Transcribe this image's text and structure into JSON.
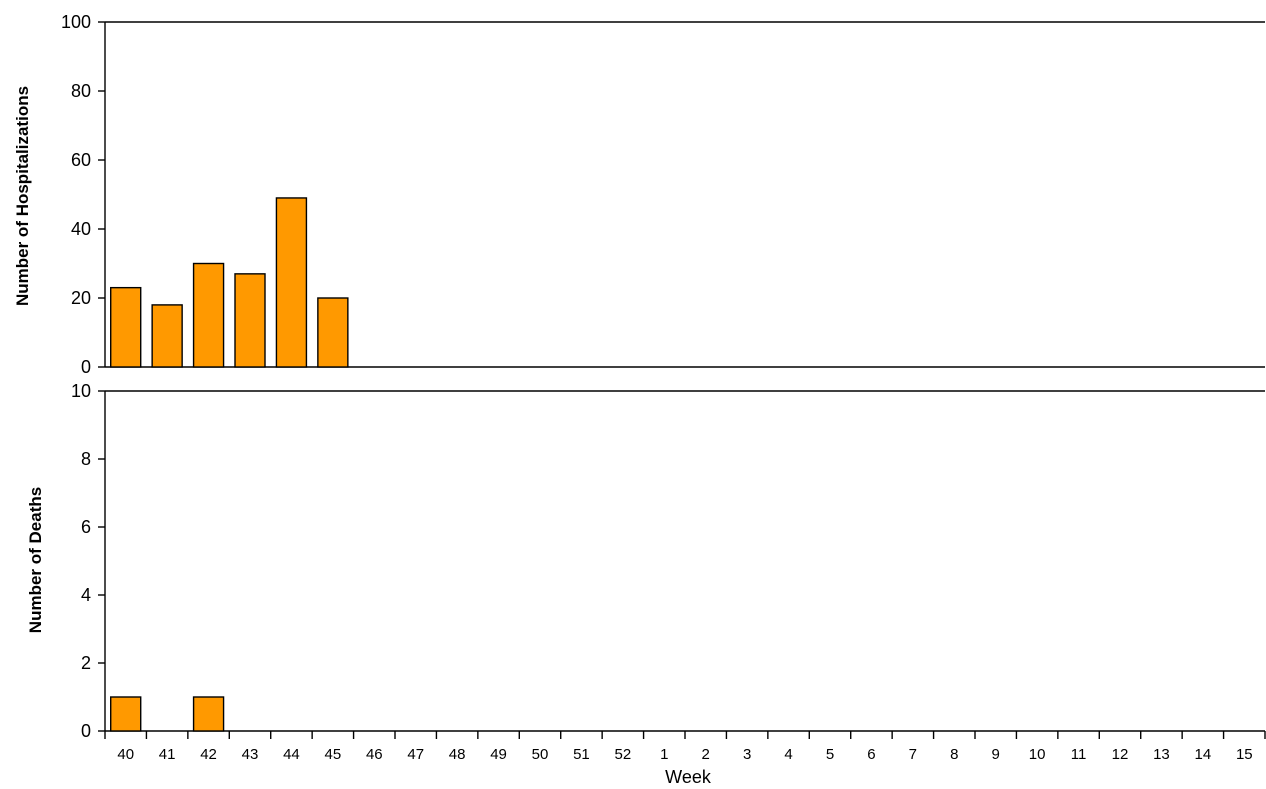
{
  "chart_data": [
    {
      "type": "bar",
      "ylabel": "Number of Hospitalizations",
      "xlabel": "",
      "ylim": [
        0,
        100
      ],
      "yticks": [
        0,
        20,
        40,
        60,
        80,
        100
      ],
      "categories": [
        "40",
        "41",
        "42",
        "43",
        "44",
        "45",
        "46",
        "47",
        "48",
        "49",
        "50",
        "51",
        "52",
        "1",
        "2",
        "3",
        "4",
        "5",
        "6",
        "7",
        "8",
        "9",
        "10",
        "11",
        "12",
        "13",
        "14",
        "15"
      ],
      "values": [
        23,
        18,
        30,
        27,
        49,
        20,
        0,
        0,
        0,
        0,
        0,
        0,
        0,
        0,
        0,
        0,
        0,
        0,
        0,
        0,
        0,
        0,
        0,
        0,
        0,
        0,
        0,
        0
      ],
      "bar_color": "#ff9900",
      "grid": false
    },
    {
      "type": "bar",
      "ylabel": "Number of Deaths",
      "xlabel": "Week",
      "ylim": [
        0,
        10
      ],
      "yticks": [
        0,
        2,
        4,
        6,
        8,
        10
      ],
      "categories": [
        "40",
        "41",
        "42",
        "43",
        "44",
        "45",
        "46",
        "47",
        "48",
        "49",
        "50",
        "51",
        "52",
        "1",
        "2",
        "3",
        "4",
        "5",
        "6",
        "7",
        "8",
        "9",
        "10",
        "11",
        "12",
        "13",
        "14",
        "15"
      ],
      "values": [
        1,
        0,
        1,
        0,
        0,
        0,
        0,
        0,
        0,
        0,
        0,
        0,
        0,
        0,
        0,
        0,
        0,
        0,
        0,
        0,
        0,
        0,
        0,
        0,
        0,
        0,
        0,
        0
      ],
      "bar_color": "#ff9900",
      "grid": false
    }
  ]
}
